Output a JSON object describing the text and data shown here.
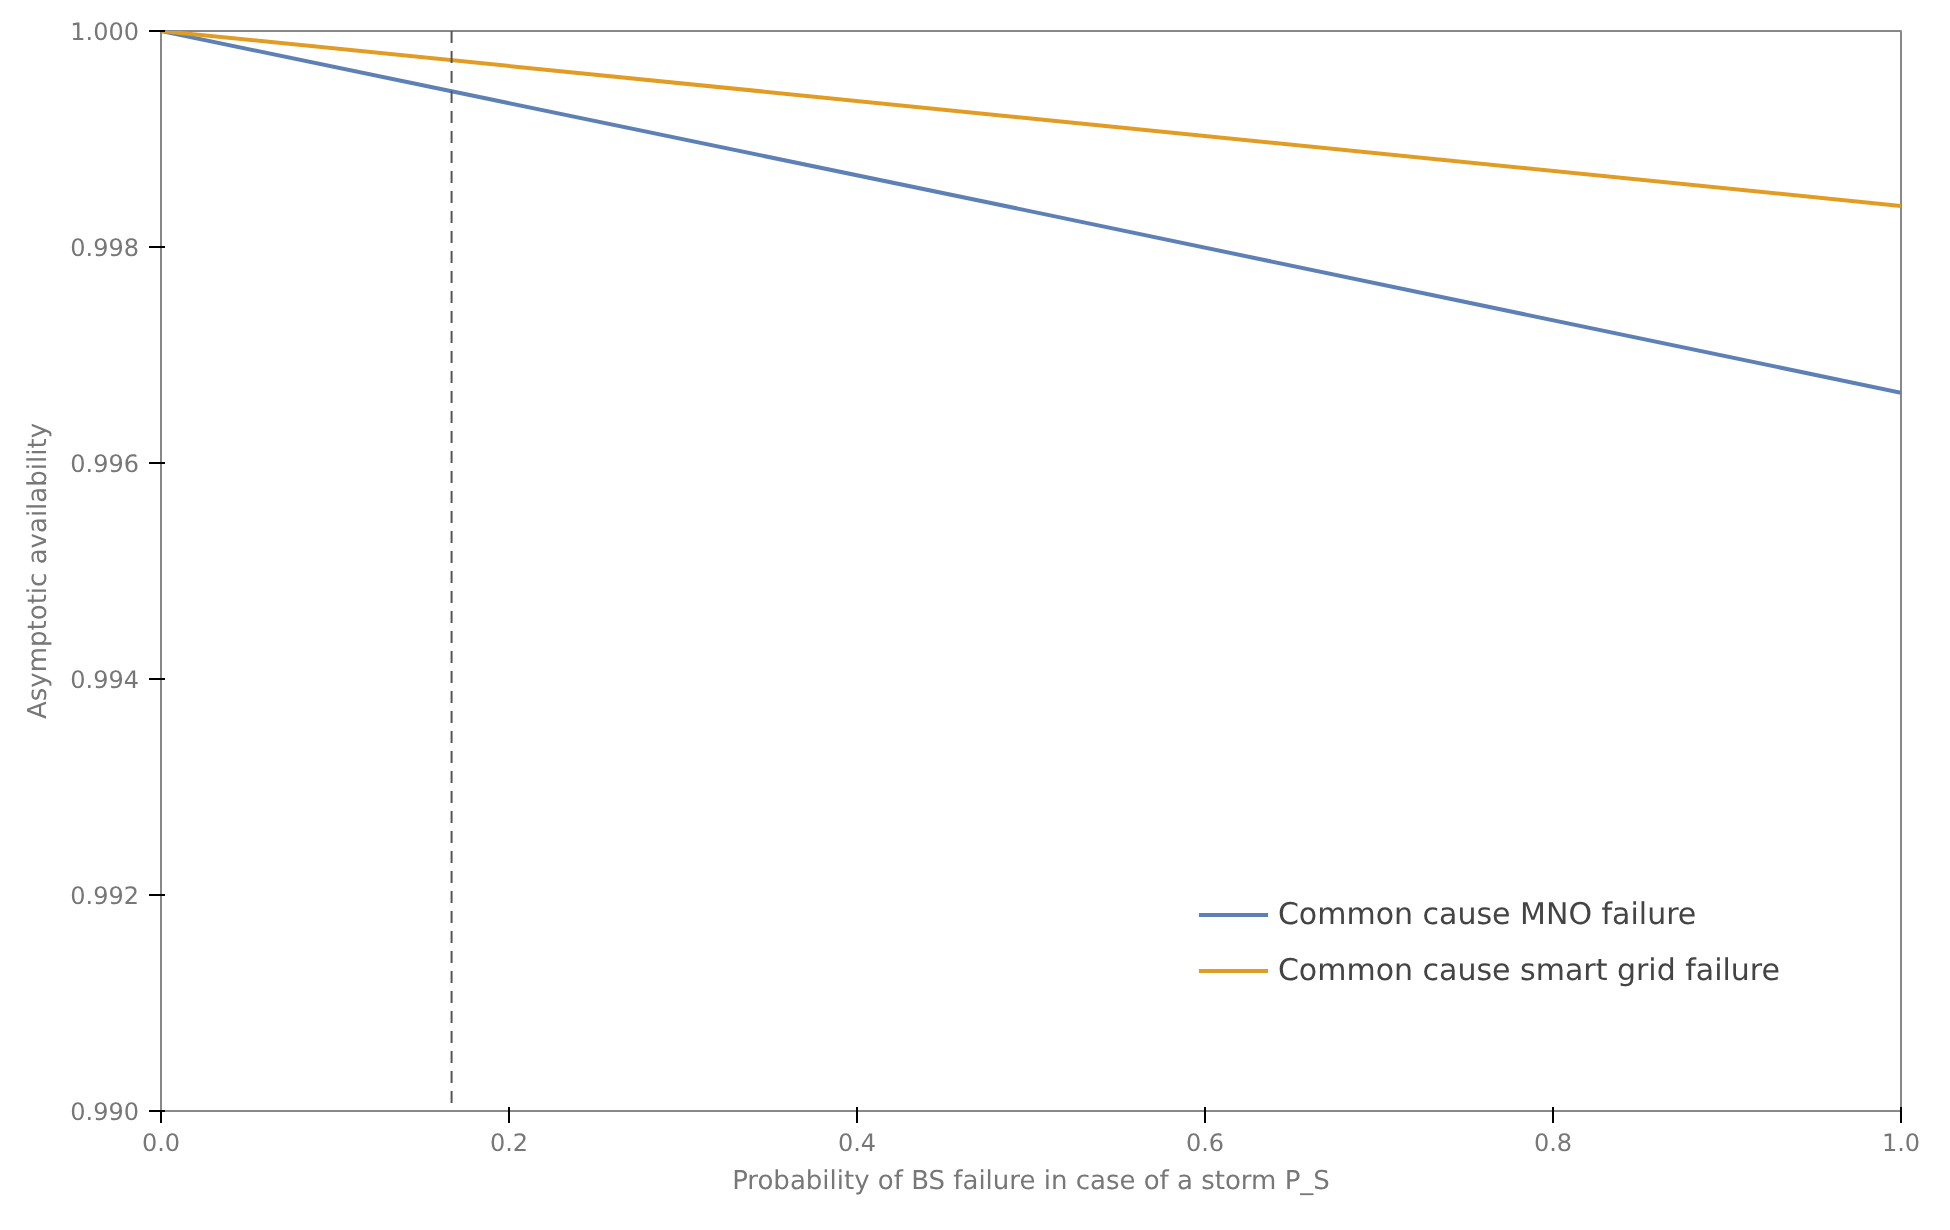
{
  "chart_data": {
    "type": "line",
    "xlabel": "Probability of BS failure in case of a storm P_S",
    "ylabel": "Asymptotic availability",
    "x": [
      0,
      0.5,
      1
    ],
    "series": [
      {
        "name": "Common cause MNO failure",
        "color": "#5e81b5",
        "values": [
          1.0,
          0.99833,
          0.99665
        ]
      },
      {
        "name": "Common cause smart grid failure",
        "color": "#e19c24",
        "values": [
          1.0,
          0.99919,
          0.99838
        ]
      }
    ],
    "xlim": [
      0,
      1
    ],
    "xticks": [
      {
        "value": 0,
        "label": "0.0"
      },
      0.2,
      0.4,
      0.6,
      0.8,
      {
        "value": 1,
        "label": "1.0"
      }
    ],
    "ylim": [
      0.99,
      1.0
    ],
    "yticks": [
      {
        "value": 0.99,
        "label": "0.990"
      },
      0.992,
      0.994,
      0.996,
      0.998,
      {
        "value": 1.0,
        "label": "1.000"
      }
    ],
    "ref_lines": [
      {
        "axis": "x",
        "value": 0.167,
        "color": "#555555",
        "line_style": "dashed"
      }
    ],
    "grid": false,
    "legend": "bottom right",
    "marker": "none",
    "line_style": "solid"
  }
}
